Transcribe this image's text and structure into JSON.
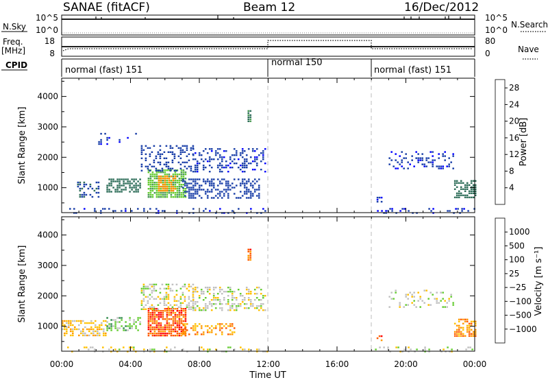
{
  "header": {
    "station": "SANAE (fitACF)",
    "beam": "Beam 12",
    "date": "16/Dec/2012"
  },
  "panels": {
    "nsky": {
      "left_label": "N.Sky",
      "left_ticks": [
        "10^5",
        "10^0"
      ],
      "right_label": "N.Search",
      "right_ticks": [
        "10^5",
        "10^0"
      ]
    },
    "freq": {
      "left_label_1": "Freq.",
      "left_label_2": "[MHz]",
      "left_ticks": [
        "18",
        "8"
      ],
      "right_label": "Nave",
      "right_ticks": [
        "80",
        "0"
      ]
    },
    "cpid": {
      "label": "CPID",
      "segments": [
        {
          "name": "normal (fast) 151",
          "start_h": 0,
          "end_h": 12
        },
        {
          "name": "normal 150",
          "start_h": 12,
          "end_h": 18
        },
        {
          "name": "normal (fast) 151",
          "start_h": 18,
          "end_h": 24
        }
      ]
    }
  },
  "colors": {
    "power": [
      "#0000ff",
      "#1a3fa8",
      "#2f6e5a",
      "#4a9a55",
      "#66cc33",
      "#f0c000",
      "#ff9000",
      "#ff5a00",
      "#ff0000"
    ],
    "velocity": [
      "#ff0000",
      "#ff5a00",
      "#ff9a00",
      "#ffc000",
      "#c0c0c0",
      "#66cc33",
      "#2f8a4a",
      "#2050b0",
      "#0a2aa0"
    ]
  },
  "chart_data": [
    {
      "type": "heatmap",
      "name": "power",
      "ylabel": "Slant Range [km]",
      "xlabel": "",
      "xlim": [
        0,
        24
      ],
      "ylim": [
        180,
        4600
      ],
      "yticks": [
        "1000",
        "2000",
        "3000",
        "4000"
      ],
      "colorbar": {
        "label": "Power [dB]",
        "ticks": [
          "4",
          "8",
          "12",
          "16",
          "20",
          "24",
          "28"
        ],
        "range": [
          0,
          30
        ]
      },
      "features": [
        {
          "t0": 0.2,
          "t1": 12.0,
          "r0": 190,
          "r1": 330,
          "level": 4,
          "density": 0.22
        },
        {
          "t0": 18.2,
          "t1": 24.0,
          "r0": 190,
          "r1": 330,
          "level": 4,
          "density": 0.2
        },
        {
          "t0": 0.9,
          "t1": 2.2,
          "r0": 700,
          "r1": 1200,
          "level": 6,
          "density": 0.45
        },
        {
          "t0": 2.6,
          "t1": 4.6,
          "r0": 850,
          "r1": 1300,
          "level": 8,
          "density": 0.55
        },
        {
          "t0": 5.0,
          "t1": 7.2,
          "r0": 700,
          "r1": 1600,
          "level": 14,
          "density": 0.8
        },
        {
          "t0": 5.6,
          "t1": 6.6,
          "r0": 900,
          "r1": 1400,
          "level": 22,
          "density": 0.7
        },
        {
          "t0": 7.0,
          "t1": 11.5,
          "r0": 650,
          "r1": 1300,
          "level": 5,
          "density": 0.45
        },
        {
          "t0": 4.6,
          "t1": 7.6,
          "r0": 1550,
          "r1": 2400,
          "level": 5,
          "density": 0.35
        },
        {
          "t0": 7.6,
          "t1": 11.8,
          "r0": 1500,
          "r1": 2300,
          "level": 4,
          "density": 0.35
        },
        {
          "t0": 2.0,
          "t1": 4.6,
          "r0": 2400,
          "r1": 2800,
          "level": 4,
          "density": 0.12
        },
        {
          "t0": 10.8,
          "t1": 11.0,
          "r0": 3200,
          "r1": 3550,
          "level": 10,
          "density": 0.9
        },
        {
          "t0": 19.0,
          "t1": 22.8,
          "r0": 1600,
          "r1": 2200,
          "level": 4,
          "density": 0.28
        },
        {
          "t0": 22.8,
          "t1": 24.0,
          "r0": 650,
          "r1": 1250,
          "level": 8,
          "density": 0.6
        },
        {
          "t0": 18.3,
          "t1": 18.6,
          "r0": 550,
          "r1": 700,
          "level": 4,
          "density": 0.7
        }
      ]
    },
    {
      "type": "heatmap",
      "name": "velocity",
      "ylabel": "Slant Range [km]",
      "xlabel": "Time UT",
      "xlim": [
        0,
        24
      ],
      "ylim": [
        180,
        4600
      ],
      "xticks": [
        "00:00",
        "04:00",
        "08:00",
        "12:00",
        "16:00",
        "20:00",
        "00:00"
      ],
      "yticks": [
        "1000",
        "2000",
        "3000",
        "4000"
      ],
      "colorbar": {
        "label": "Velocity [m s⁻¹]",
        "ticks": [
          "1000",
          "500",
          "100",
          "25",
          "−25",
          "−100",
          "−500",
          "−1000"
        ]
      },
      "features": [
        {
          "t0": 0.2,
          "t1": 12.0,
          "r0": 190,
          "r1": 330,
          "level": 4,
          "density": 0.2
        },
        {
          "t0": 18.2,
          "t1": 24.0,
          "r0": 190,
          "r1": 330,
          "level": 4,
          "density": 0.18
        },
        {
          "t0": 0.0,
          "t1": 2.6,
          "r0": 700,
          "r1": 1200,
          "level": 3,
          "density": 0.5
        },
        {
          "t0": 2.6,
          "t1": 4.6,
          "r0": 850,
          "r1": 1300,
          "level": 5,
          "density": 0.5
        },
        {
          "t0": 5.0,
          "t1": 7.2,
          "r0": 700,
          "r1": 1600,
          "level": 1,
          "density": 0.8
        },
        {
          "t0": 7.0,
          "t1": 10.0,
          "r0": 700,
          "r1": 1100,
          "level": 2,
          "density": 0.45
        },
        {
          "t0": 4.6,
          "t1": 7.6,
          "r0": 1550,
          "r1": 2400,
          "level": 4,
          "density": 0.35
        },
        {
          "t0": 7.6,
          "t1": 11.8,
          "r0": 1500,
          "r1": 2300,
          "level": 4,
          "density": 0.35
        },
        {
          "t0": 10.8,
          "t1": 11.0,
          "r0": 3200,
          "r1": 3550,
          "level": 1,
          "density": 0.9
        },
        {
          "t0": 19.0,
          "t1": 22.8,
          "r0": 1600,
          "r1": 2200,
          "level": 4,
          "density": 0.25
        },
        {
          "t0": 22.8,
          "t1": 24.0,
          "r0": 650,
          "r1": 1250,
          "level": 2,
          "density": 0.6
        },
        {
          "t0": 18.3,
          "t1": 18.6,
          "r0": 550,
          "r1": 700,
          "level": 1,
          "density": 0.7
        }
      ]
    }
  ]
}
